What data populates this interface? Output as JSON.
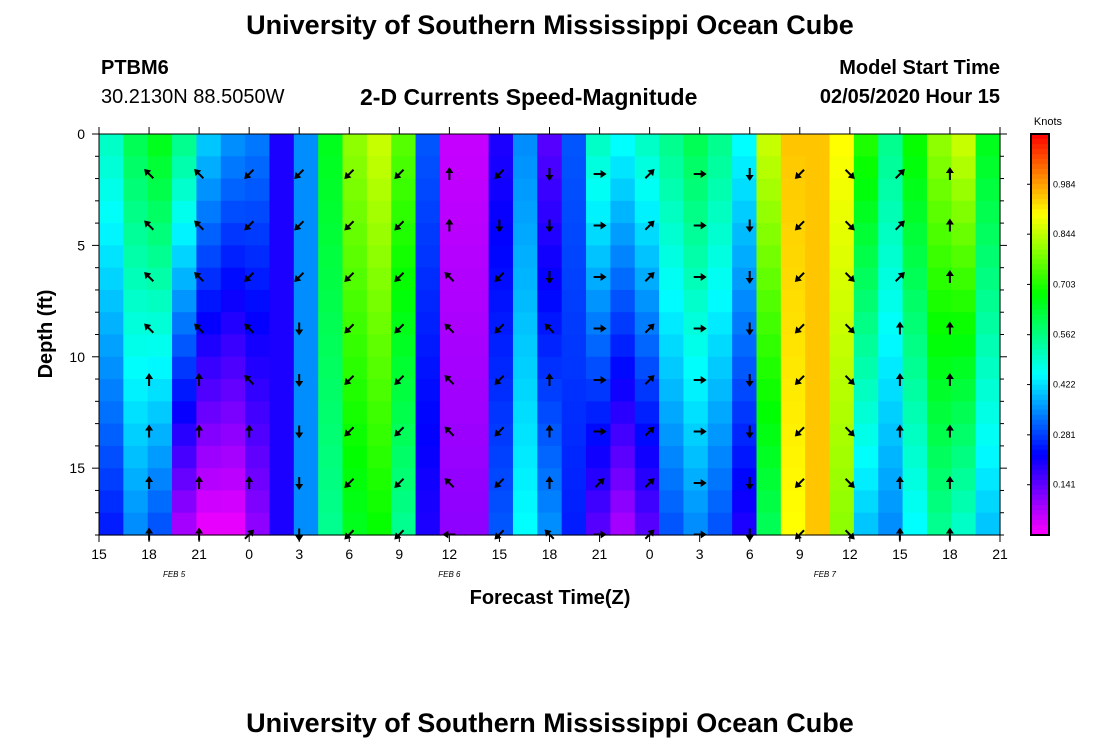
{
  "header": {
    "title": "University of Southern Mississippi Ocean Cube",
    "station_id": "PTBM6",
    "coordinates": "30.2130N 88.5050W",
    "subtitle": "2-D Currents Speed-Magnitude",
    "model_start_label": "Model Start Time",
    "model_start_value": "02/05/2020 Hour 15"
  },
  "footer": {
    "title": "University of Southern Mississippi Ocean Cube"
  },
  "chart_data": {
    "type": "heatmap",
    "title": "2-D Currents Speed-Magnitude",
    "xlabel": "Forecast Time(Z)",
    "ylabel": "Depth (ft)",
    "x_ticks": [
      "15",
      "18",
      "21",
      "0",
      "3",
      "6",
      "9",
      "12",
      "15",
      "18",
      "21",
      "0",
      "3",
      "6",
      "9",
      "12",
      "15",
      "18",
      "21"
    ],
    "date_labels": [
      {
        "label": "FEB 5",
        "tick_index": 1.5
      },
      {
        "label": "FEB 6",
        "tick_index": 7
      },
      {
        "label": "FEB 7",
        "tick_index": 14.5
      }
    ],
    "y_ticks": [
      0,
      5,
      10,
      15
    ],
    "y_range": [
      0,
      18
    ],
    "x_range_hours": [
      0,
      54
    ],
    "colorbar": {
      "unit": "Knots",
      "min": 0,
      "max": 1.125,
      "tick_values": [
        0.141,
        0.281,
        0.422,
        0.562,
        0.703,
        0.844,
        0.984
      ],
      "tick_labels": [
        "0.141",
        "0.281",
        "0.422",
        "0.562",
        "0.703",
        "0.844",
        "0.984"
      ]
    },
    "speed_profile": {
      "hours": [
        0,
        1.5,
        3,
        4.5,
        6,
        7.5,
        9,
        10.5,
        12,
        13.5,
        15,
        16.5,
        18,
        19.5,
        21,
        22.5,
        24,
        25.5,
        27,
        28.5,
        30,
        31.5,
        33,
        34.5,
        36,
        37.5,
        39,
        40.5,
        42,
        43.5,
        45,
        46.5,
        48,
        49.5,
        51,
        52.5,
        54
      ],
      "surface": [
        0.5,
        0.6,
        0.65,
        0.55,
        0.4,
        0.35,
        0.33,
        0.2,
        0.35,
        0.65,
        0.8,
        0.85,
        0.75,
        0.3,
        0.05,
        0.05,
        0.2,
        0.35,
        0.15,
        0.3,
        0.5,
        0.45,
        0.5,
        0.55,
        0.6,
        0.55,
        0.45,
        0.85,
        0.95,
        0.95,
        0.9,
        0.7,
        0.55,
        0.68,
        0.8,
        0.85,
        0.65
      ],
      "bottom": [
        0.25,
        0.35,
        0.3,
        0.08,
        0.02,
        0.02,
        0.1,
        0.2,
        0.35,
        0.55,
        0.65,
        0.68,
        0.55,
        0.2,
        0.1,
        0.1,
        0.3,
        0.45,
        0.35,
        0.25,
        0.15,
        0.08,
        0.15,
        0.3,
        0.35,
        0.3,
        0.2,
        0.6,
        0.9,
        0.95,
        0.8,
        0.4,
        0.35,
        0.45,
        0.55,
        0.5,
        0.4
      ]
    },
    "vectors": {
      "columns": [
        {
          "hour": 3,
          "dirs": [
            "ul",
            "ul",
            "ul",
            "ul",
            "u",
            "u",
            "u",
            "u"
          ]
        },
        {
          "hour": 6,
          "dirs": [
            "ul",
            "ul",
            "ul",
            "ul",
            "u",
            "u",
            "u",
            "u"
          ]
        },
        {
          "hour": 9,
          "dirs": [
            "dl",
            "dl",
            "dl",
            "ul",
            "ul",
            "u",
            "u",
            "ur"
          ]
        },
        {
          "hour": 12,
          "dirs": [
            "dl",
            "dl",
            "dl",
            "d",
            "d",
            "d",
            "d",
            "d"
          ]
        },
        {
          "hour": 15,
          "dirs": [
            "dl",
            "dl",
            "dl",
            "dl",
            "dl",
            "dl",
            "dl",
            "dl"
          ]
        },
        {
          "hour": 18,
          "dirs": [
            "dl",
            "dl",
            "dl",
            "dl",
            "dl",
            "dl",
            "dl",
            "dl"
          ]
        },
        {
          "hour": 21,
          "dirs": [
            "u",
            "u",
            "ul",
            "ul",
            "ul",
            "ul",
            "ul",
            "l"
          ]
        },
        {
          "hour": 24,
          "dirs": [
            "dl",
            "d",
            "dl",
            "dl",
            "dl",
            "dl",
            "dl",
            "dl"
          ]
        },
        {
          "hour": 27,
          "dirs": [
            "d",
            "d",
            "d",
            "ul",
            "u",
            "u",
            "u",
            "ul"
          ]
        },
        {
          "hour": 30,
          "dirs": [
            "r",
            "r",
            "r",
            "r",
            "r",
            "r",
            "ur",
            "r"
          ]
        },
        {
          "hour": 33,
          "dirs": [
            "ur",
            "ur",
            "ur",
            "ur",
            "ur",
            "ur",
            "ur",
            "ur"
          ]
        },
        {
          "hour": 36,
          "dirs": [
            "r",
            "r",
            "r",
            "r",
            "r",
            "r",
            "r",
            "r"
          ]
        },
        {
          "hour": 39,
          "dirs": [
            "d",
            "d",
            "d",
            "d",
            "d",
            "d",
            "d",
            "d"
          ]
        },
        {
          "hour": 42,
          "dirs": [
            "dl",
            "dl",
            "dl",
            "dl",
            "dl",
            "dl",
            "dl",
            "dl"
          ]
        },
        {
          "hour": 45,
          "dirs": [
            "dr",
            "dr",
            "dr",
            "dr",
            "dr",
            "dr",
            "dr",
            "dr"
          ]
        },
        {
          "hour": 48,
          "dirs": [
            "ur",
            "ur",
            "ur",
            "u",
            "u",
            "u",
            "u",
            "u"
          ]
        },
        {
          "hour": 51,
          "dirs": [
            "u",
            "u",
            "u",
            "u",
            "u",
            "u",
            "u",
            "u"
          ]
        }
      ]
    }
  }
}
